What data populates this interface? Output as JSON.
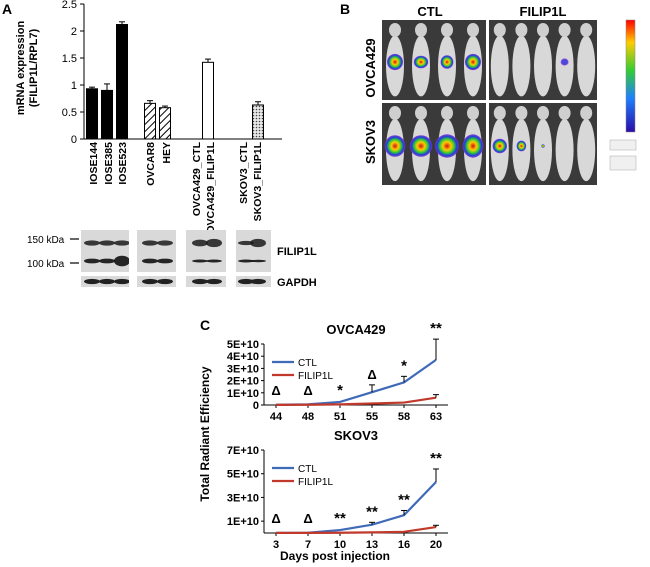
{
  "panels": {
    "a": "A",
    "b": "B",
    "c": "C"
  },
  "chart_data": [
    {
      "type": "bar",
      "panel": "A",
      "ylabel_line1": "mRNA expression",
      "ylabel_line2": "(FILIP1L/RPL7)",
      "ylim": [
        0,
        2.5
      ],
      "yticks": [
        "0",
        "0.5",
        "1",
        "1.5",
        "2",
        "2.5"
      ],
      "bars": [
        {
          "label": "IOSE144",
          "value": 0.93,
          "err": 0.03,
          "fill": "solid"
        },
        {
          "label": "IOSE385",
          "value": 0.9,
          "err": 0.12,
          "fill": "solid"
        },
        {
          "label": "IOSE523",
          "value": 2.12,
          "err": 0.05,
          "fill": "solid"
        },
        {
          "label": "OVCAR8",
          "value": 0.66,
          "err": 0.05,
          "fill": "hatch"
        },
        {
          "label": "HEY",
          "value": 0.58,
          "err": 0.03,
          "fill": "hatch"
        },
        {
          "label": "OVCA429_CTL",
          "value": 0.0,
          "err": 0.0,
          "fill": "open"
        },
        {
          "label": "OVCA429_FILIP1L",
          "value": 1.42,
          "err": 0.06,
          "fill": "open"
        },
        {
          "label": "SKOV3_CTL",
          "value": 0.0,
          "err": 0.0,
          "fill": "dots"
        },
        {
          "label": "SKOV3_FILIP1L",
          "value": 0.63,
          "err": 0.06,
          "fill": "dots"
        }
      ]
    },
    {
      "type": "line",
      "panel": "C-top",
      "title": "OVCA429",
      "ylim": [
        0,
        50000000000
      ],
      "yticks": [
        "0",
        "1E+10",
        "2E+10",
        "3E+10",
        "4E+10",
        "5E+10"
      ],
      "categories": [
        "44",
        "48",
        "51",
        "55",
        "58",
        "63"
      ],
      "series": [
        {
          "name": "CTL",
          "color": "#3e6ab8",
          "values": [
            200000000.0,
            500000000.0,
            2500000000.0,
            10500000000.0,
            18500000000.0,
            37000000000.0
          ],
          "err": [
            200000000.0,
            300000000.0,
            800000000.0,
            6000000000.0,
            5000000000.0,
            17000000000.0
          ]
        },
        {
          "name": "FILIP1L",
          "color": "#c0392b",
          "values": [
            100000000.0,
            200000000.0,
            500000000.0,
            1200000000.0,
            2000000000.0,
            6000000000.0
          ],
          "err": [
            100000000.0,
            100000000.0,
            300000000.0,
            500000000.0,
            800000000.0,
            2500000000.0
          ]
        }
      ],
      "annotations": [
        "Δ",
        "Δ",
        "*",
        "Δ",
        "*",
        "**"
      ]
    },
    {
      "type": "line",
      "panel": "C-bottom",
      "title": "SKOV3",
      "ylim": [
        0,
        70000000000
      ],
      "yticks": [
        "1E+10",
        "3E+10",
        "5E+10",
        "7E+10"
      ],
      "yticks_values": [
        10000000000,
        30000000000,
        50000000000,
        70000000000
      ],
      "categories": [
        "3",
        "7",
        "10",
        "13",
        "16",
        "20"
      ],
      "series": [
        {
          "name": "CTL",
          "color": "#3e6ab8",
          "values": [
            100000000.0,
            200000000.0,
            2500000000.0,
            7000000000.0,
            15000000000.0,
            43000000000.0
          ],
          "err": [
            100000000.0,
            100000000.0,
            500000000.0,
            2000000000.0,
            4000000000.0,
            11000000000.0
          ]
        },
        {
          "name": "FILIP1L",
          "color": "#c0392b",
          "values": [
            50000000.0,
            100000000.0,
            200000000.0,
            500000000.0,
            1000000000.0,
            5000000000.0
          ],
          "err": [
            50000000.0,
            50000000.0,
            100000000.0,
            200000000.0,
            400000000.0,
            1500000000.0
          ]
        }
      ],
      "annotations": [
        "Δ",
        "Δ",
        "**",
        "**",
        "**",
        "**"
      ]
    }
  ],
  "c_ylabel": "Total Radiant Efficiency",
  "c_xlabel": "Days post injection",
  "blot": {
    "marker_150": "150 kDa",
    "marker_100": "100 kDa",
    "label_main": "FILIP1L",
    "label_loading": "GAPDH"
  },
  "imaging": {
    "col_ctl": "CTL",
    "col_filip": "FILIP1L",
    "row_1": "OVCA429",
    "row_2": "SKOV3"
  }
}
